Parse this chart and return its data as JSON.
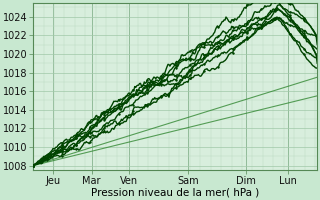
{
  "title": "",
  "xlabel": "Pression niveau de la mer( hPa )",
  "ylabel": "",
  "bg_color": "#c8e8d0",
  "grid_major_color": "#a0c8a8",
  "grid_minor_color": "#b8d8c0",
  "plot_area_bg": "#d8eedd",
  "line_color_dark": "#004400",
  "line_color_mid": "#006600",
  "line_color_light": "#338833",
  "ylim": [
    1007.5,
    1025.5
  ],
  "xlim": [
    0.0,
    6.8
  ],
  "yticks": [
    1008,
    1010,
    1012,
    1014,
    1016,
    1018,
    1020,
    1022,
    1024
  ],
  "xtick_labels": [
    "Jeu",
    "Mar",
    "Ven",
    "Sam",
    "Dim",
    "Lun"
  ],
  "xtick_positions": [
    0.47,
    1.4,
    2.3,
    3.7,
    5.1,
    6.1
  ],
  "xlabel_fontsize": 7.5,
  "tick_fontsize": 7
}
